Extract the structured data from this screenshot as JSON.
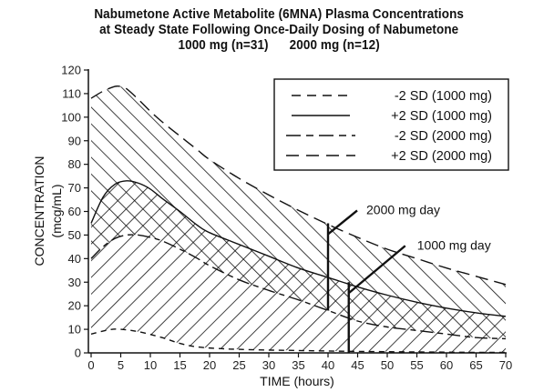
{
  "chart_data": {
    "type": "area",
    "title": [
      "Nabumetone Active Metabolite (6MNA) Plasma Concentrations",
      "at Steady State Following Once-Daily Dosing of Nabumetone",
      "1000 mg (n=31)      2000 mg (n=12)"
    ],
    "xlabel": "TIME (hours)",
    "ylabel": "CONCENTRATION",
    "ylabel_units": "(mcg/mL)",
    "xlim": [
      0,
      70
    ],
    "ylim": [
      0,
      120
    ],
    "x_ticks": [
      0,
      5,
      10,
      15,
      20,
      25,
      30,
      35,
      40,
      45,
      50,
      55,
      60,
      65,
      70
    ],
    "y_ticks": [
      0,
      10,
      20,
      30,
      40,
      50,
      60,
      70,
      80,
      90,
      100,
      110,
      120
    ],
    "grid": false,
    "legend_position": "top-right",
    "series": [
      {
        "name": "-2 SD (1000 mg)",
        "style": "short-dash",
        "x": [
          0,
          3,
          5,
          8,
          12,
          15,
          18,
          22,
          25,
          30,
          35,
          40,
          45,
          50,
          55,
          60,
          65,
          70
        ],
        "values": [
          8,
          9.8,
          10,
          9,
          6.5,
          4,
          2.5,
          1.8,
          1.5,
          1.2,
          1,
          0.8,
          0.6,
          0.5,
          0.4,
          0.3,
          0.2,
          0.2
        ]
      },
      {
        "name": "+2 SD (1000 mg)",
        "style": "solid",
        "x": [
          0,
          2,
          4,
          6,
          8,
          10,
          12,
          15,
          18,
          20,
          25,
          30,
          35,
          40,
          45,
          50,
          55,
          60,
          65,
          70
        ],
        "values": [
          55,
          66,
          71.5,
          73,
          72,
          69.5,
          65.5,
          60,
          54,
          51,
          46,
          41,
          36,
          32,
          28,
          24.5,
          21.5,
          19,
          17,
          15.5
        ]
      },
      {
        "name": "-2 SD (2000 mg)",
        "style": "long-short-dash",
        "x": [
          0,
          2,
          4,
          6,
          8,
          10,
          12,
          15,
          18,
          20,
          25,
          30,
          35,
          40,
          45,
          50,
          55,
          60,
          65,
          70
        ],
        "values": [
          40,
          45,
          48.5,
          50,
          50,
          49,
          47.5,
          44,
          40,
          37,
          31,
          26.5,
          22.5,
          18,
          13.5,
          11,
          9.5,
          8,
          6.5,
          6
        ]
      },
      {
        "name": "+2 SD (2000 mg)",
        "style": "long-dash",
        "x": [
          0,
          2,
          4,
          5,
          6,
          8,
          10,
          12,
          15,
          18,
          20,
          25,
          30,
          35,
          40,
          45,
          50,
          55,
          60,
          65,
          70
        ],
        "values": [
          108,
          111,
          113,
          113,
          112,
          107.5,
          102.5,
          98,
          92,
          86,
          82,
          74,
          67,
          60.5,
          54.5,
          49,
          44,
          40,
          36,
          32.5,
          29
        ]
      }
    ],
    "annotations": [
      {
        "text": "2000 mg day",
        "x": 40,
        "y_range": [
          18,
          55
        ]
      },
      {
        "text": "1000 mg day",
        "x": 43.5,
        "y_range": [
          0,
          30
        ]
      }
    ]
  }
}
